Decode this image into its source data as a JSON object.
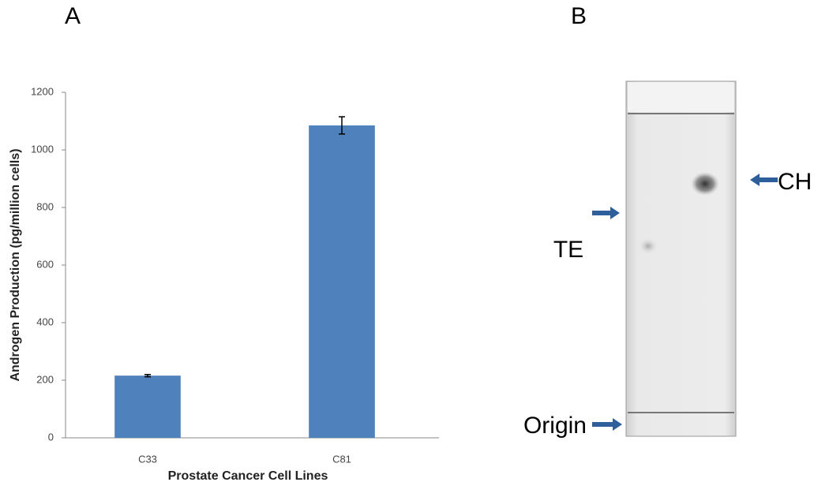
{
  "panel_labels": [
    "A",
    "B"
  ],
  "chart_data": {
    "type": "bar",
    "categories": [
      "C33",
      "C81"
    ],
    "values": [
      216,
      1085
    ],
    "errors": [
      4,
      30
    ],
    "color": "#4f81bd",
    "y_label": "Androgen Production (pg/million cells)",
    "x_label": "Prostate Cancer Cell Lines",
    "ylim": [
      0,
      1200
    ],
    "yticks": [
      0,
      200,
      400,
      600,
      800,
      1000,
      1200
    ]
  },
  "panel_b": {
    "labels": [
      "CH",
      "TE",
      "Origin"
    ]
  }
}
